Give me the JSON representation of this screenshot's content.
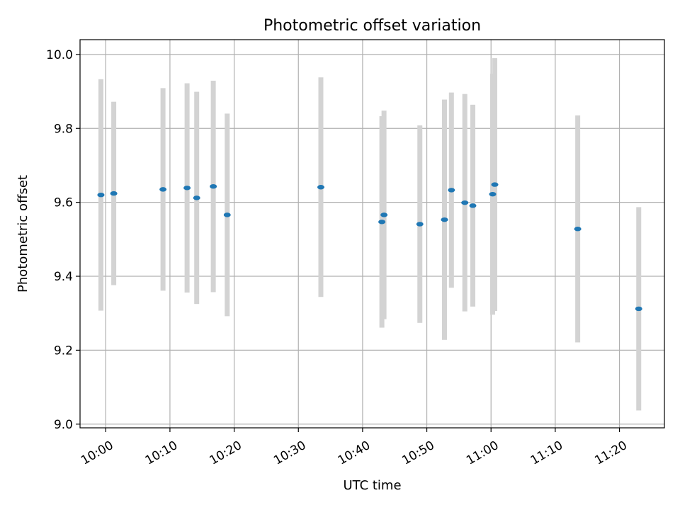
{
  "chart_data": {
    "type": "scatter",
    "title": "Photometric offset variation",
    "xlabel": "UTC time",
    "ylabel": "Photometric offset",
    "xlim": [
      "09:56",
      "11:27"
    ],
    "ylim": [
      8.99,
      10.04
    ],
    "x_ticks": [
      "10:00",
      "10:10",
      "10:20",
      "10:30",
      "10:40",
      "10:50",
      "11:00",
      "11:10",
      "11:20"
    ],
    "y_ticks": [
      "9.0",
      "9.2",
      "9.4",
      "9.6",
      "9.8",
      "10.0"
    ],
    "grid": true,
    "marker_color": "#1f77b4",
    "errorbar_color": "#d3d3d3",
    "series": [
      {
        "points": [
          {
            "time": "09:59:15",
            "offset": 9.62,
            "low": 9.307,
            "high": 9.933
          },
          {
            "time": "10:01:15",
            "offset": 9.624,
            "low": 9.376,
            "high": 9.872
          },
          {
            "time": "10:08:55",
            "offset": 9.635,
            "low": 9.361,
            "high": 9.909
          },
          {
            "time": "10:12:40",
            "offset": 9.639,
            "low": 9.356,
            "high": 9.922
          },
          {
            "time": "10:14:10",
            "offset": 9.612,
            "low": 9.325,
            "high": 9.899
          },
          {
            "time": "10:16:45",
            "offset": 9.643,
            "low": 9.357,
            "high": 9.929
          },
          {
            "time": "10:18:55",
            "offset": 9.566,
            "low": 9.292,
            "high": 9.84
          },
          {
            "time": "10:33:30",
            "offset": 9.641,
            "low": 9.344,
            "high": 9.938
          },
          {
            "time": "10:43:00",
            "offset": 9.547,
            "low": 9.261,
            "high": 9.833
          },
          {
            "time": "10:43:20",
            "offset": 9.566,
            "low": 9.284,
            "high": 9.848
          },
          {
            "time": "10:48:55",
            "offset": 9.541,
            "low": 9.274,
            "high": 9.808
          },
          {
            "time": "10:52:45",
            "offset": 9.553,
            "low": 9.228,
            "high": 9.878
          },
          {
            "time": "10:53:50",
            "offset": 9.633,
            "low": 9.369,
            "high": 9.897
          },
          {
            "time": "10:55:55",
            "offset": 9.599,
            "low": 9.305,
            "high": 9.893
          },
          {
            "time": "10:57:10",
            "offset": 9.591,
            "low": 9.318,
            "high": 9.864
          },
          {
            "time": "11:00:15",
            "offset": 9.622,
            "low": 9.296,
            "high": 9.948
          },
          {
            "time": "11:00:35",
            "offset": 9.648,
            "low": 9.306,
            "high": 9.99
          },
          {
            "time": "11:13:30",
            "offset": 9.528,
            "low": 9.221,
            "high": 9.835
          },
          {
            "time": "11:23:00",
            "offset": 9.312,
            "low": 9.037,
            "high": 9.587
          }
        ]
      }
    ]
  }
}
